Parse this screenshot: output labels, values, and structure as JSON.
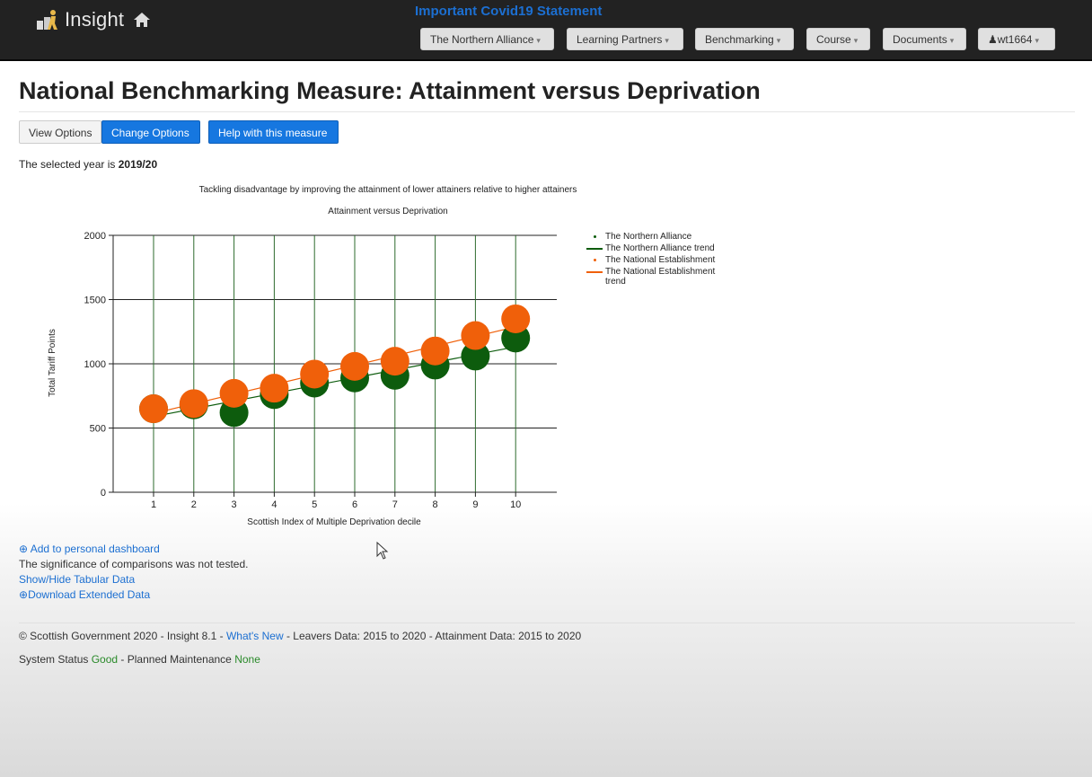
{
  "navbar": {
    "brand": "Insight",
    "announcement": "Important Covid19 Statement",
    "menus": [
      "The Northern Alliance",
      "Learning Partners",
      "Benchmarking",
      "Course",
      "Documents"
    ],
    "user": "wt1664"
  },
  "page": {
    "title": "National Benchmarking Measure: Attainment versus Deprivation",
    "buttons": {
      "view_options": "View Options",
      "change_options": "Change Options",
      "help": "Help with this measure"
    },
    "selected_year_prefix": "The selected year is",
    "selected_year": "2019/20"
  },
  "chart_data": {
    "type": "scatter",
    "title": "Tackling disadvantage by improving the attainment of lower attainers relative to higher attainers",
    "subtitle": "Attainment versus Deprivation",
    "xlabel": "Scottish Index of Multiple Deprivation decile",
    "ylabel": "Total Tariff Points",
    "categories": [
      "1",
      "2",
      "3",
      "4",
      "5",
      "6",
      "7",
      "8",
      "9",
      "10"
    ],
    "ylim": [
      0,
      2000
    ],
    "yticks": [
      0,
      500,
      1000,
      1500,
      2000
    ],
    "grid": true,
    "legend_position": "right",
    "series": [
      {
        "name": "The Northern Alliance",
        "color": "#0d5c0d",
        "values": [
          650,
          680,
          620,
          760,
          850,
          890,
          910,
          990,
          1060,
          1200
        ]
      },
      {
        "name": "The National Establishment",
        "color": "#f0600a",
        "values": [
          650,
          690,
          770,
          810,
          920,
          980,
          1020,
          1100,
          1220,
          1350
        ]
      }
    ],
    "legend": [
      {
        "label": "The Northern Alliance",
        "kind": "dot",
        "color": "#0d5c0d"
      },
      {
        "label": "The Northern Alliance trend",
        "kind": "line",
        "color": "#0d5c0d"
      },
      {
        "label": "The National Establishment",
        "kind": "dot",
        "color": "#f0600a"
      },
      {
        "label": "The National Establishment trend",
        "kind": "line",
        "color": "#f0600a"
      }
    ]
  },
  "links": {
    "add_dashboard": "Add to personal dashboard",
    "significance": "The significance of comparisons was not tested.",
    "show_hide": "Show/Hide Tabular Data",
    "download": "Download Extended Data"
  },
  "footer": {
    "copyright": "© Scottish Government 2020 - Insight 8.1 -",
    "whats_new": "What's New",
    "data_info": "- Leavers Data: 2015 to 2020 - Attainment Data: 2015 to 2020",
    "status_label": "System Status",
    "status_value": "Good",
    "maintenance_label": "- Planned Maintenance",
    "maintenance_value": "None"
  }
}
